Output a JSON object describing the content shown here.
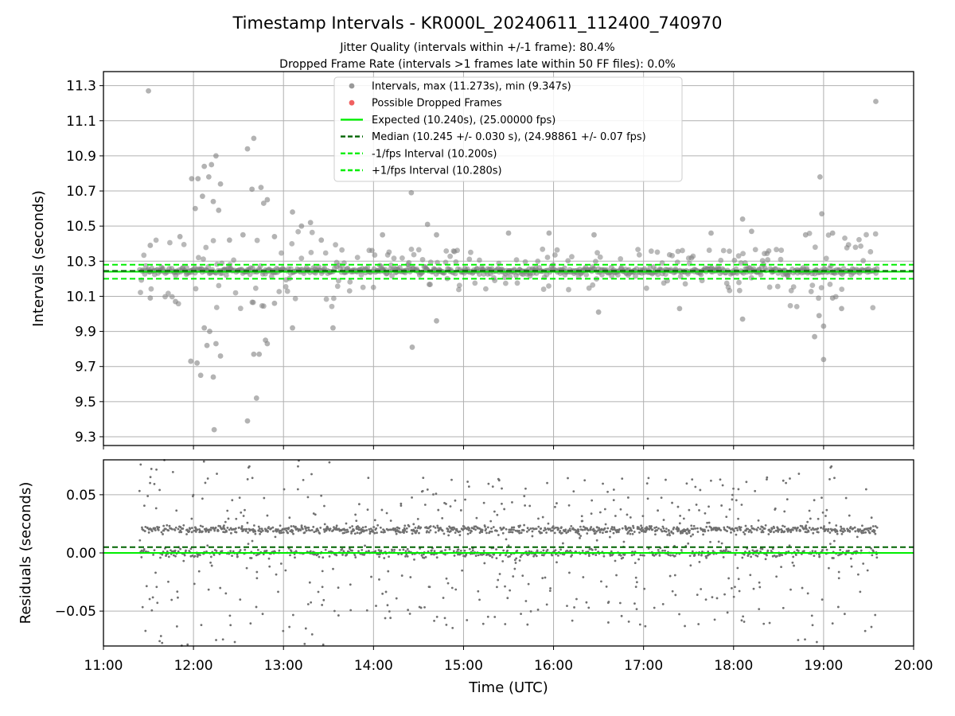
{
  "figure": {
    "title": "Timestamp Intervals - KR000L_20240611_112400_740970",
    "subtitle_1": "Jitter Quality (intervals within +/-1 frame): 80.4%",
    "subtitle_2": "Dropped Frame Rate (intervals >1 frames late within 50 FF files): 0.0%"
  },
  "colors": {
    "intervals": "#808080",
    "dropped": "#ff0000",
    "expected": "#00ee00",
    "median": "#006400",
    "bounds": "#00ee00",
    "residual_points": "#707070",
    "grid": "#b0b0b0"
  },
  "chart_data": [
    {
      "type": "scatter",
      "ylabel": "Intervals (seconds)",
      "xlim_hours": [
        11,
        20
      ],
      "ylim": [
        9.25,
        11.38
      ],
      "yticks": [
        9.3,
        9.5,
        9.7,
        9.9,
        10.1,
        10.3,
        10.5,
        10.7,
        10.9,
        11.1,
        11.3
      ],
      "ytick_labels": [
        "9.3",
        "9.5",
        "9.7",
        "9.9",
        "10.1",
        "10.3",
        "10.5",
        "10.7",
        "10.9",
        "11.1",
        "11.3"
      ],
      "grid": true,
      "legend_position": "top-center",
      "legend": [
        {
          "label": "Intervals, max (11.273s), min (9.347s)",
          "kind": "dot",
          "color": "#999999"
        },
        {
          "label": "Possible Dropped Frames",
          "kind": "dot",
          "color": "#f06060"
        },
        {
          "label": "Expected (10.240s), (25.00000 fps)",
          "kind": "solid",
          "color": "#00ee00"
        },
        {
          "label": "Median (10.245 +/- 0.030 s), (24.98861 +/- 0.07 fps)",
          "kind": "dashed",
          "color": "#006400"
        },
        {
          "label": "-1/fps Interval (10.200s)",
          "kind": "dashed",
          "color": "#00ee00"
        },
        {
          "label": "+1/fps Interval (10.280s)",
          "kind": "dashed",
          "color": "#00ee00"
        }
      ],
      "reference_lines": {
        "expected": 10.24,
        "median": 10.245,
        "lower": 10.2,
        "upper": 10.28
      },
      "max_interval": 11.273,
      "min_interval": 9.347,
      "span_hours": [
        11.4,
        19.6
      ],
      "outliers": [
        {
          "x": 11.5,
          "y": 11.27
        },
        {
          "x": 19.58,
          "y": 11.21
        },
        {
          "x": 12.67,
          "y": 11.0
        },
        {
          "x": 12.6,
          "y": 10.94
        },
        {
          "x": 12.25,
          "y": 10.9
        },
        {
          "x": 12.12,
          "y": 10.84
        },
        {
          "x": 12.2,
          "y": 10.85
        },
        {
          "x": 11.98,
          "y": 10.77
        },
        {
          "x": 12.05,
          "y": 10.77
        },
        {
          "x": 12.17,
          "y": 10.78
        },
        {
          "x": 12.3,
          "y": 10.74
        },
        {
          "x": 12.65,
          "y": 10.71
        },
        {
          "x": 12.75,
          "y": 10.72
        },
        {
          "x": 12.82,
          "y": 10.65
        },
        {
          "x": 12.78,
          "y": 10.63
        },
        {
          "x": 12.1,
          "y": 10.67
        },
        {
          "x": 12.22,
          "y": 10.64
        },
        {
          "x": 12.02,
          "y": 10.6
        },
        {
          "x": 12.28,
          "y": 10.59
        },
        {
          "x": 14.42,
          "y": 10.69
        },
        {
          "x": 18.96,
          "y": 10.78
        },
        {
          "x": 18.98,
          "y": 10.57
        },
        {
          "x": 12.23,
          "y": 9.34
        },
        {
          "x": 12.6,
          "y": 9.39
        },
        {
          "x": 12.7,
          "y": 9.52
        },
        {
          "x": 12.22,
          "y": 9.64
        },
        {
          "x": 12.08,
          "y": 9.65
        },
        {
          "x": 12.04,
          "y": 9.72
        },
        {
          "x": 11.97,
          "y": 9.73
        },
        {
          "x": 12.3,
          "y": 9.76
        },
        {
          "x": 12.67,
          "y": 9.77
        },
        {
          "x": 12.73,
          "y": 9.77
        },
        {
          "x": 12.15,
          "y": 9.82
        },
        {
          "x": 12.25,
          "y": 9.83
        },
        {
          "x": 12.82,
          "y": 9.83
        },
        {
          "x": 12.8,
          "y": 9.85
        },
        {
          "x": 12.18,
          "y": 9.9
        },
        {
          "x": 12.12,
          "y": 9.92
        },
        {
          "x": 14.43,
          "y": 9.81
        },
        {
          "x": 18.9,
          "y": 9.87
        },
        {
          "x": 19.0,
          "y": 9.74
        },
        {
          "x": 18.95,
          "y": 9.99
        },
        {
          "x": 19.0,
          "y": 9.93
        },
        {
          "x": 13.55,
          "y": 9.92
        },
        {
          "x": 13.1,
          "y": 9.92
        },
        {
          "x": 12.4,
          "y": 10.42
        },
        {
          "x": 12.55,
          "y": 10.45
        },
        {
          "x": 12.9,
          "y": 10.44
        },
        {
          "x": 13.2,
          "y": 10.5
        },
        {
          "x": 13.3,
          "y": 10.52
        },
        {
          "x": 13.42,
          "y": 10.42
        },
        {
          "x": 14.1,
          "y": 10.45
        },
        {
          "x": 14.7,
          "y": 10.45
        },
        {
          "x": 15.5,
          "y": 10.46
        },
        {
          "x": 15.95,
          "y": 10.46
        },
        {
          "x": 16.45,
          "y": 10.45
        },
        {
          "x": 17.75,
          "y": 10.46
        },
        {
          "x": 18.1,
          "y": 10.54
        },
        {
          "x": 18.2,
          "y": 10.47
        },
        {
          "x": 18.8,
          "y": 10.45
        },
        {
          "x": 19.1,
          "y": 10.46
        },
        {
          "x": 14.6,
          "y": 10.51
        },
        {
          "x": 11.85,
          "y": 10.44
        },
        {
          "x": 11.52,
          "y": 10.39
        },
        {
          "x": 11.52,
          "y": 10.09
        },
        {
          "x": 11.8,
          "y": 10.07
        },
        {
          "x": 13.1,
          "y": 10.58
        },
        {
          "x": 12.9,
          "y": 10.06
        },
        {
          "x": 14.7,
          "y": 9.96
        },
        {
          "x": 16.5,
          "y": 10.01
        },
        {
          "x": 18.1,
          "y": 9.97
        },
        {
          "x": 17.4,
          "y": 10.03
        },
        {
          "x": 19.2,
          "y": 10.03
        },
        {
          "x": 19.1,
          "y": 10.09
        }
      ]
    },
    {
      "type": "scatter",
      "ylabel": "Residuals (seconds)",
      "xlabel": "Time (UTC)",
      "xlim_hours": [
        11,
        20
      ],
      "xticks": [
        11,
        12,
        13,
        14,
        15,
        16,
        17,
        18,
        19,
        20
      ],
      "xtick_labels": [
        "11:00",
        "12:00",
        "13:00",
        "14:00",
        "15:00",
        "16:00",
        "17:00",
        "18:00",
        "19:00",
        "20:00"
      ],
      "ylim": [
        -0.08,
        0.08
      ],
      "yticks": [
        -0.05,
        0.0,
        0.05
      ],
      "ytick_labels": [
        "−0.05",
        "0.00",
        "0.05"
      ],
      "grid": true,
      "reference_lines": {
        "expected": 0.0,
        "median": 0.005
      },
      "point_count": 2000
    }
  ]
}
